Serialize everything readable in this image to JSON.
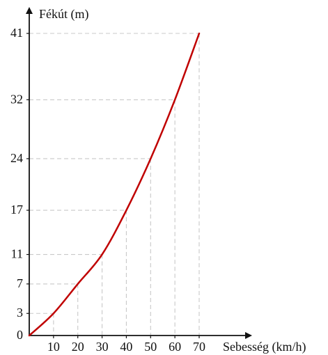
{
  "chart_data": {
    "type": "line",
    "title": "",
    "xlabel": "Sebesség (km/h)",
    "ylabel": "Fékút (m)",
    "xlim": [
      0,
      70
    ],
    "ylim": [
      0,
      41
    ],
    "origin_label": "0",
    "x_ticks": [
      10,
      20,
      30,
      40,
      50,
      60,
      70
    ],
    "y_ticks": [
      3,
      7,
      11,
      17,
      24,
      32,
      41
    ],
    "series": [
      {
        "x": [
          0,
          10,
          20,
          30,
          40,
          50,
          60,
          70
        ],
        "y": [
          0,
          3,
          7,
          11,
          17,
          24,
          32,
          41
        ]
      }
    ],
    "grid": "dashed guide lines to each labeled point",
    "colors": {
      "line": "#c00000",
      "grid": "#c8c8c8",
      "axis": "#111111"
    }
  }
}
